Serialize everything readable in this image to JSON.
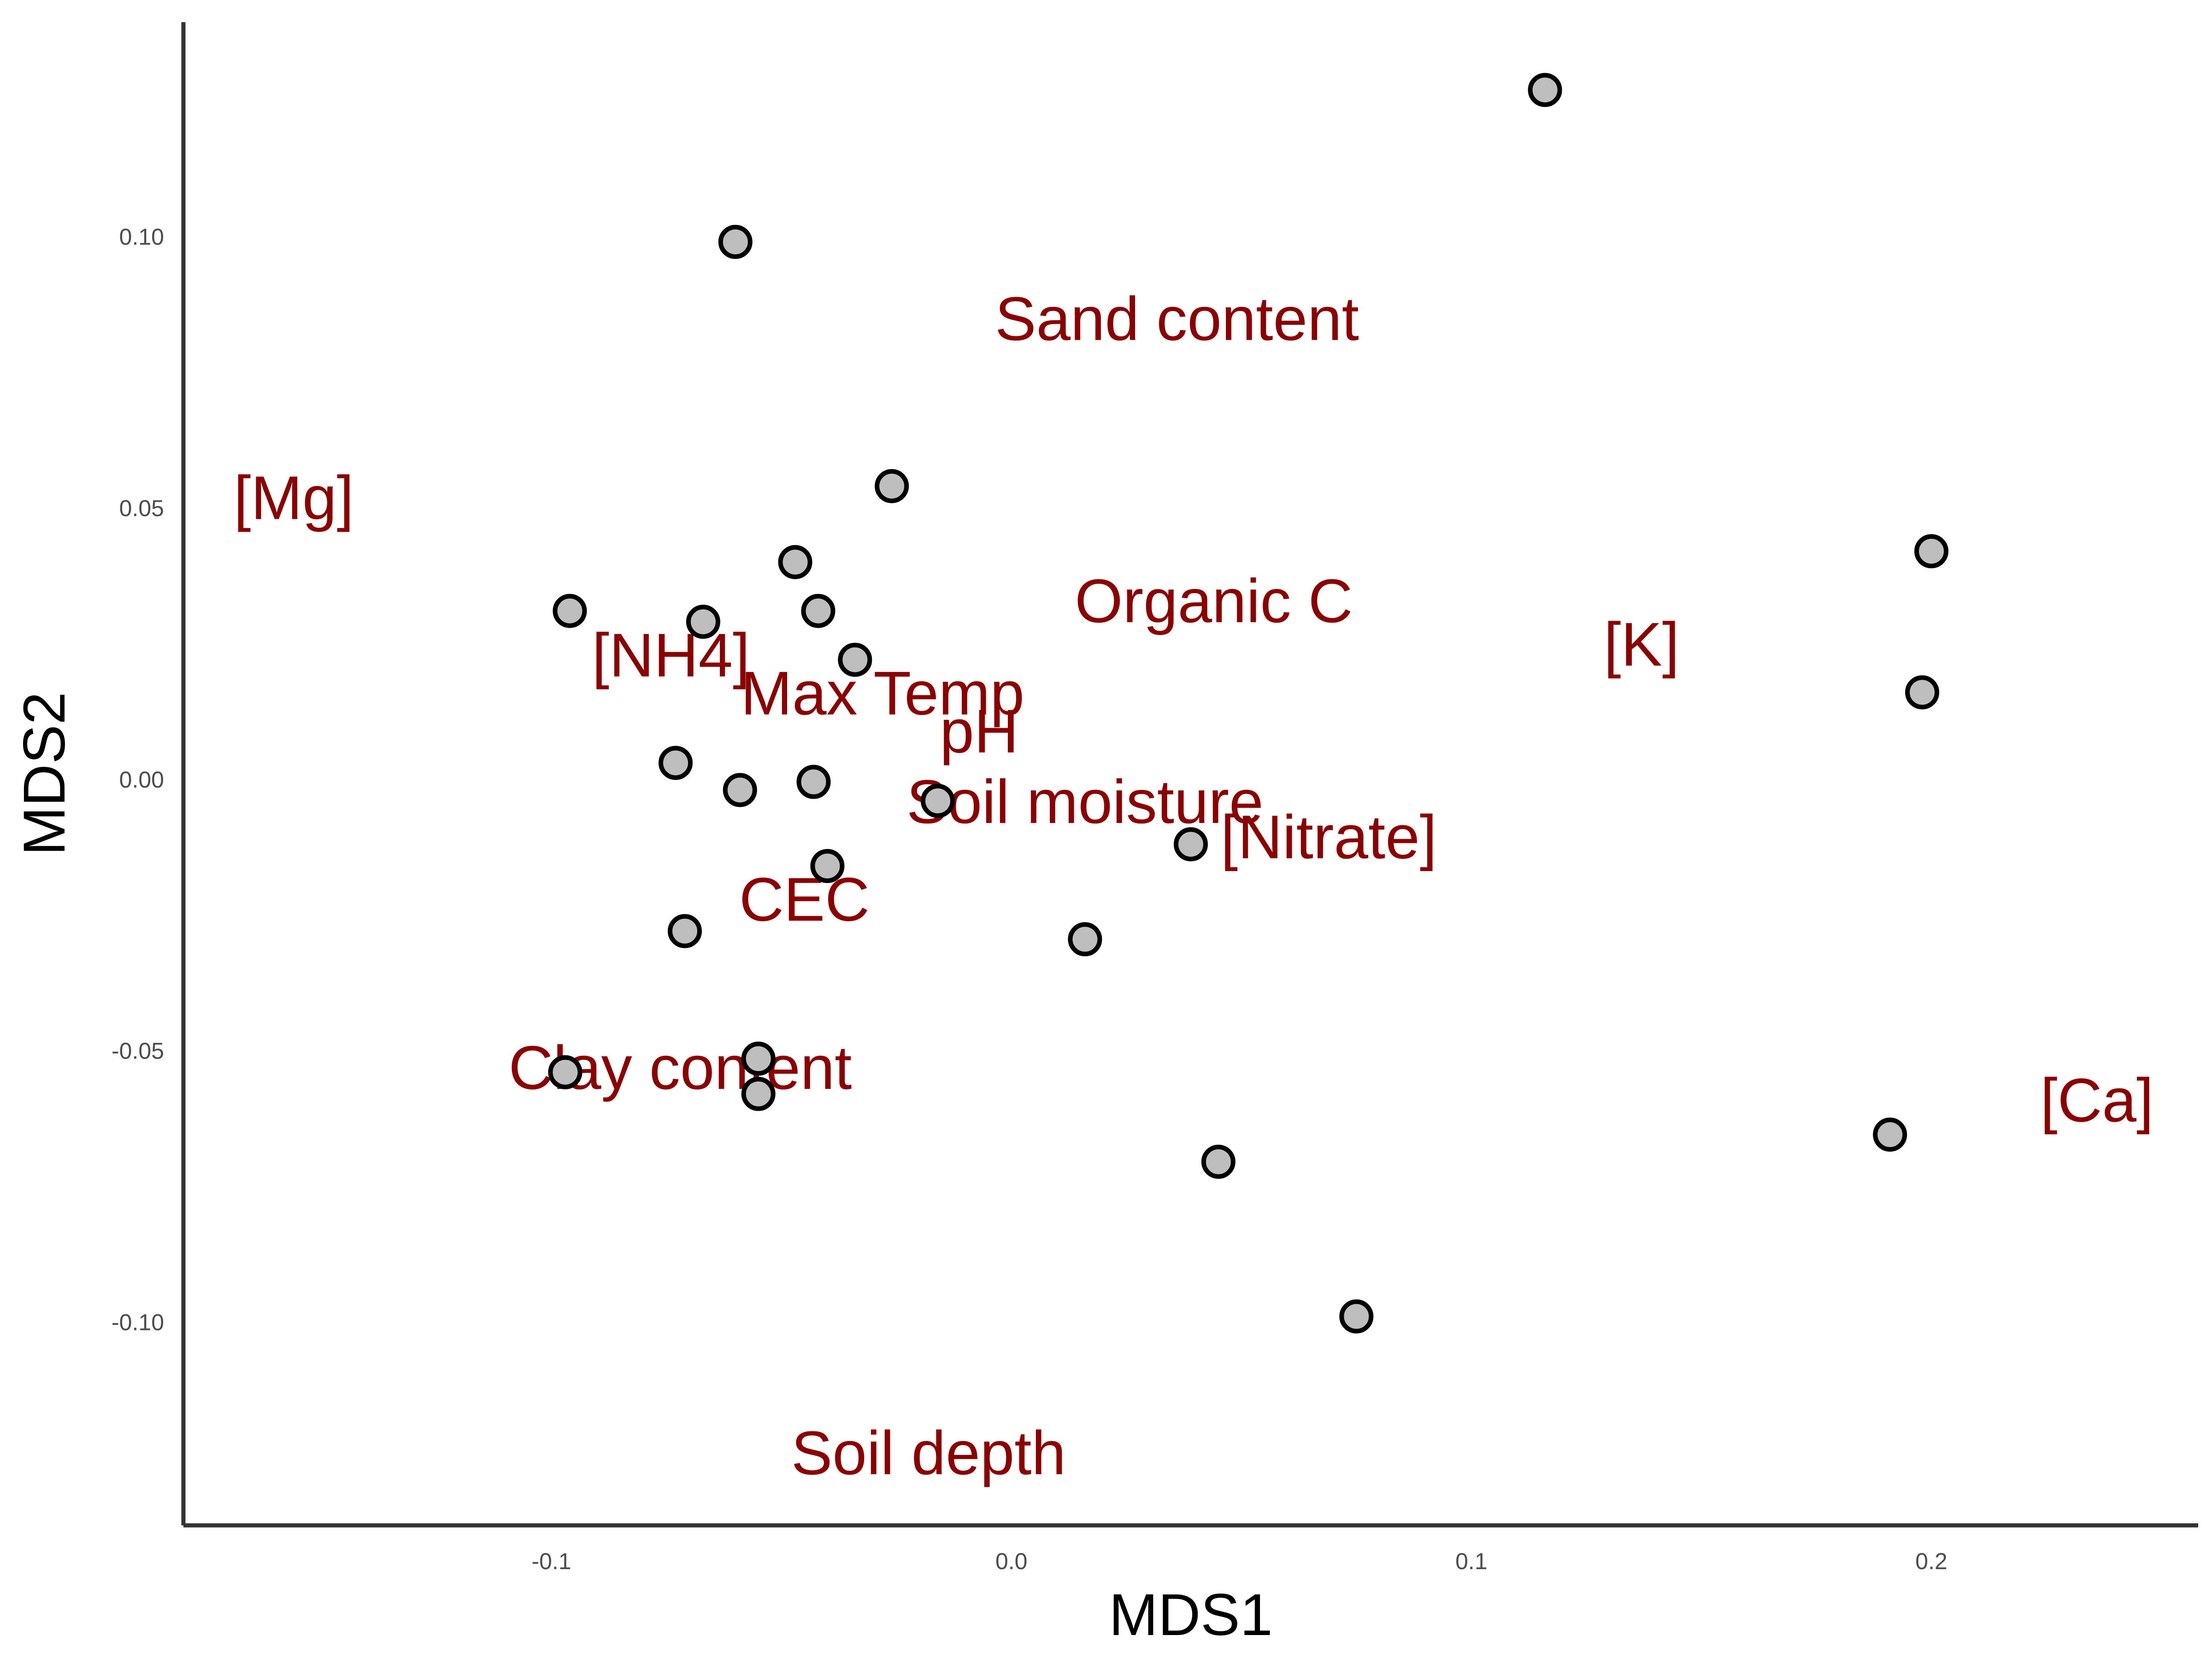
{
  "chart_data": {
    "type": "scatter",
    "xlabel": "MDS1",
    "ylabel": "MDS2",
    "xlim": [
      -0.18,
      0.258
    ],
    "ylim": [
      -0.1375,
      0.1395
    ],
    "x_ticks": [
      -0.1,
      0.0,
      0.1,
      0.2
    ],
    "x_tick_labels": [
      "-0.1",
      "0.0",
      "0.1",
      "0.2"
    ],
    "y_ticks": [
      -0.1,
      -0.05,
      0.0,
      0.05,
      0.1
    ],
    "y_tick_labels": [
      "-0.10",
      "-0.05",
      "0.00",
      "0.05",
      "0.10"
    ],
    "grid": false,
    "point_color": "#bebebe",
    "point_outline": "#000000",
    "label_color": "#8b0000",
    "points": [
      {
        "x": 0.116,
        "y": 0.127
      },
      {
        "x": -0.06,
        "y": 0.099
      },
      {
        "x": -0.026,
        "y": 0.054
      },
      {
        "x": 0.2,
        "y": 0.042
      },
      {
        "x": -0.047,
        "y": 0.04
      },
      {
        "x": -0.096,
        "y": 0.031
      },
      {
        "x": -0.042,
        "y": 0.031
      },
      {
        "x": -0.067,
        "y": 0.029
      },
      {
        "x": -0.034,
        "y": 0.022
      },
      {
        "x": 0.198,
        "y": 0.016
      },
      {
        "x": -0.073,
        "y": 0.003
      },
      {
        "x": -0.043,
        "y": -0.0005
      },
      {
        "x": -0.059,
        "y": -0.002
      },
      {
        "x": -0.016,
        "y": -0.004
      },
      {
        "x": 0.039,
        "y": -0.012
      },
      {
        "x": -0.04,
        "y": -0.016
      },
      {
        "x": -0.071,
        "y": -0.028
      },
      {
        "x": 0.016,
        "y": -0.0295
      },
      {
        "x": -0.055,
        "y": -0.0515
      },
      {
        "x": -0.097,
        "y": -0.054
      },
      {
        "x": -0.055,
        "y": -0.058
      },
      {
        "x": 0.191,
        "y": -0.0655
      },
      {
        "x": 0.045,
        "y": -0.0705
      },
      {
        "x": 0.075,
        "y": -0.099
      }
    ],
    "labels": [
      {
        "text": "Sand content",
        "x": 0.036,
        "y": 0.085
      },
      {
        "text": "[Mg]",
        "x": -0.156,
        "y": 0.052
      },
      {
        "text": "Organic C",
        "x": 0.044,
        "y": 0.033
      },
      {
        "text": "[K]",
        "x": 0.137,
        "y": 0.025
      },
      {
        "text": "[NH4]",
        "x": -0.074,
        "y": 0.023
      },
      {
        "text": "Max Temp",
        "x": -0.028,
        "y": 0.016
      },
      {
        "text": "pH",
        "x": -0.007,
        "y": 0.009
      },
      {
        "text": "Soil moisture",
        "x": 0.016,
        "y": -0.004
      },
      {
        "text": "[Nitrate]",
        "x": 0.069,
        "y": -0.0105
      },
      {
        "text": "CEC",
        "x": -0.045,
        "y": -0.022
      },
      {
        "text": "Clay content",
        "x": -0.072,
        "y": -0.053
      },
      {
        "text": "[Ca]",
        "x": 0.236,
        "y": -0.059
      },
      {
        "text": "Soil depth",
        "x": -0.018,
        "y": -0.124
      }
    ]
  }
}
